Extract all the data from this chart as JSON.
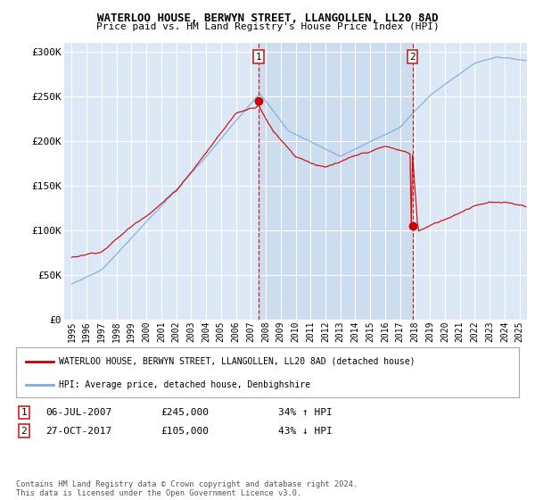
{
  "title": "WATERLOO HOUSE, BERWYN STREET, LLANGOLLEN, LL20 8AD",
  "subtitle": "Price paid vs. HM Land Registry's House Price Index (HPI)",
  "ylim": [
    0,
    310000
  ],
  "xlim_start": 1994.5,
  "xlim_end": 2025.5,
  "legend_line1": "WATERLOO HOUSE, BERWYN STREET, LLANGOLLEN, LL20 8AD (detached house)",
  "legend_line2": "HPI: Average price, detached house, Denbighshire",
  "footnote": "Contains HM Land Registry data © Crown copyright and database right 2024.\nThis data is licensed under the Open Government Licence v3.0.",
  "sale1_date": "06-JUL-2007",
  "sale1_price": "£245,000",
  "sale1_hpi": "34% ↑ HPI",
  "sale2_date": "27-OCT-2017",
  "sale2_price": "£105,000",
  "sale2_hpi": "43% ↓ HPI",
  "line_color_house": "#cc0000",
  "line_color_hpi": "#7dadd4",
  "vline_color": "#cc0000",
  "bg_color": "#dce8f5",
  "grid_color": "#ffffff",
  "shade_color": "#cdddf0",
  "marker1_x": 2007.54,
  "marker1_y": 245000,
  "marker2_x": 2017.83,
  "marker2_y": 105000,
  "ytick_vals": [
    0,
    50000,
    100000,
    150000,
    200000,
    250000,
    300000
  ],
  "ytick_labels": [
    "£0",
    "£50K",
    "£100K",
    "£150K",
    "£200K",
    "£250K",
    "£300K"
  ]
}
